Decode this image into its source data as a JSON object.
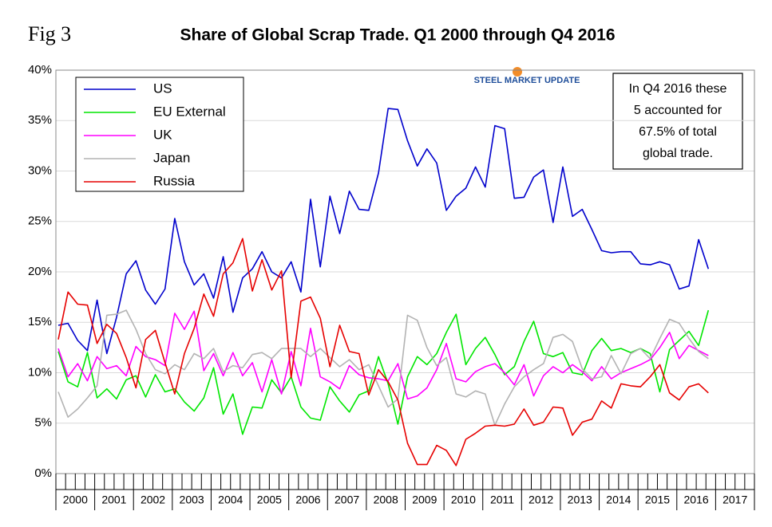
{
  "fig_label": "Fig 3",
  "logo": "STEEL MARKET UPDATE",
  "note": [
    "In Q4 2016 these",
    "5 accounted for",
    "67.5% of total",
    "global trade."
  ],
  "chart_data": {
    "type": "line",
    "title": "Share of Global Scrap Trade. Q1 2000 through Q4 2016",
    "categories": [
      "2000",
      null,
      null,
      null,
      "2001",
      null,
      null,
      null,
      "2002",
      null,
      null,
      null,
      "2003",
      null,
      null,
      null,
      "2004",
      null,
      null,
      null,
      "2005",
      null,
      null,
      null,
      "2006",
      null,
      null,
      null,
      "2007",
      null,
      null,
      null,
      "2008",
      null,
      null,
      null,
      "2009",
      null,
      null,
      null,
      "2010",
      null,
      null,
      null,
      "2011",
      null,
      null,
      null,
      "2012",
      null,
      null,
      null,
      "2013",
      null,
      null,
      null,
      "2014",
      null,
      null,
      null,
      "2015",
      null,
      null,
      null,
      "2016",
      null,
      null,
      null,
      "2017",
      null,
      null,
      null
    ],
    "ylim": [
      0,
      40
    ],
    "yticks": [
      {
        "value": 0,
        "label": "0%"
      },
      {
        "value": 5,
        "label": "5%"
      },
      {
        "value": 10,
        "label": "10%"
      },
      {
        "value": 15,
        "label": "15%"
      },
      {
        "value": 20,
        "label": "20%"
      },
      {
        "value": 25,
        "label": "25%"
      },
      {
        "value": 30,
        "label": "30%"
      },
      {
        "value": 35,
        "label": "35%"
      },
      {
        "value": 40,
        "label": "40%"
      }
    ],
    "grid": true,
    "legend": "top-left",
    "series": [
      {
        "name": "US",
        "color": "#0000cc",
        "values": [
          14.7,
          14.9,
          13.2,
          12.2,
          17.2,
          11.9,
          15.5,
          19.8,
          21.1,
          18.2,
          16.8,
          18.3,
          25.3,
          21.0,
          18.7,
          19.8,
          17.4,
          21.5,
          16.0,
          19.4,
          20.3,
          22.0,
          20.0,
          19.4,
          21.0,
          18.0,
          27.2,
          20.5,
          27.5,
          23.8,
          28.0,
          26.2,
          26.1,
          29.8,
          36.2,
          36.1,
          33.0,
          30.5,
          32.2,
          30.8,
          26.1,
          27.5,
          28.3,
          30.4,
          28.4,
          34.5,
          34.2,
          27.3,
          27.4,
          29.4,
          30.1,
          24.9,
          30.4,
          25.5,
          26.2,
          24.2,
          22.1,
          21.9,
          22.0,
          22.0,
          20.8,
          20.7,
          21.0,
          20.7,
          18.3,
          18.6,
          23.2,
          20.3,
          null,
          null,
          null,
          null
        ]
      },
      {
        "name": "EU External",
        "color": "#00e600",
        "values": [
          12.1,
          9.1,
          8.6,
          12.0,
          7.5,
          8.4,
          7.4,
          9.3,
          9.7,
          7.6,
          9.8,
          8.1,
          8.4,
          7.1,
          6.2,
          7.5,
          10.5,
          5.9,
          7.9,
          3.9,
          6.6,
          6.5,
          9.3,
          8.0,
          9.6,
          6.6,
          5.5,
          5.3,
          8.6,
          7.2,
          6.1,
          7.8,
          8.2,
          11.6,
          8.9,
          4.9,
          9.6,
          11.6,
          10.8,
          11.9,
          14.0,
          15.8,
          10.8,
          12.4,
          13.5,
          11.8,
          9.8,
          10.6,
          13.1,
          15.1,
          11.9,
          11.6,
          12.0,
          10.0,
          9.8,
          12.2,
          13.4,
          12.2,
          12.4,
          12.0,
          12.4,
          11.9,
          8.1,
          12.3,
          13.2,
          14.1,
          12.7,
          16.2,
          null,
          null,
          null,
          null
        ]
      },
      {
        "name": "UK",
        "color": "#ff00ff",
        "values": [
          12.4,
          9.6,
          10.9,
          9.2,
          11.6,
          10.4,
          10.7,
          9.7,
          12.6,
          11.6,
          11.3,
          10.7,
          15.9,
          14.3,
          16.1,
          10.2,
          11.9,
          9.7,
          12.0,
          9.7,
          11.0,
          8.1,
          11.3,
          7.9,
          12.1,
          8.7,
          14.4,
          9.6,
          9.1,
          8.4,
          10.7,
          9.8,
          9.5,
          9.4,
          9.2,
          10.9,
          7.4,
          7.7,
          8.5,
          10.3,
          12.9,
          9.4,
          9.1,
          10.1,
          10.6,
          10.9,
          10.0,
          8.8,
          10.8,
          7.7,
          9.7,
          10.6,
          10.0,
          10.8,
          10.1,
          9.2,
          10.6,
          9.4,
          10.0,
          10.4,
          10.8,
          11.3,
          12.5,
          14.0,
          11.4,
          12.7,
          12.2,
          11.7,
          null,
          null,
          null,
          null
        ]
      },
      {
        "name": "Japan",
        "color": "#b3b3b3",
        "values": [
          8.1,
          5.6,
          6.4,
          7.5,
          8.7,
          15.7,
          15.8,
          16.2,
          14.3,
          11.9,
          10.3,
          9.9,
          10.8,
          10.3,
          11.9,
          11.4,
          12.4,
          10.1,
          10.7,
          10.5,
          11.8,
          12.0,
          11.4,
          12.4,
          12.4,
          12.4,
          11.6,
          12.4,
          11.5,
          10.6,
          11.3,
          10.3,
          10.8,
          8.7,
          6.6,
          7.4,
          15.7,
          15.2,
          12.5,
          10.7,
          11.5,
          7.9,
          7.6,
          8.2,
          7.9,
          4.8,
          6.9,
          8.6,
          9.6,
          10.3,
          10.9,
          13.5,
          13.8,
          13.1,
          10.4,
          9.4,
          9.6,
          11.7,
          9.9,
          11.9,
          12.4,
          11.4,
          13.4,
          15.3,
          14.9,
          13.4,
          12.1,
          11.4,
          null,
          null,
          null,
          null
        ]
      },
      {
        "name": "Russia",
        "color": "#e60000",
        "values": [
          13.3,
          18.0,
          16.8,
          16.7,
          12.9,
          14.8,
          13.9,
          11.5,
          8.5,
          13.3,
          14.2,
          11.0,
          7.9,
          11.9,
          14.4,
          17.8,
          15.6,
          19.8,
          20.9,
          23.3,
          18.1,
          21.2,
          18.2,
          20.1,
          9.5,
          17.1,
          17.5,
          15.4,
          10.6,
          14.7,
          12.1,
          11.9,
          7.8,
          10.3,
          9.1,
          7.3,
          3.0,
          0.9,
          0.9,
          2.8,
          2.3,
          0.8,
          3.4,
          4.0,
          4.7,
          4.8,
          4.7,
          4.9,
          6.4,
          4.8,
          5.1,
          6.6,
          6.5,
          3.8,
          5.1,
          5.4,
          7.2,
          6.5,
          8.9,
          8.7,
          8.6,
          9.6,
          10.8,
          8.0,
          7.3,
          8.6,
          8.9,
          8.0,
          null,
          null,
          null,
          null
        ]
      }
    ]
  }
}
